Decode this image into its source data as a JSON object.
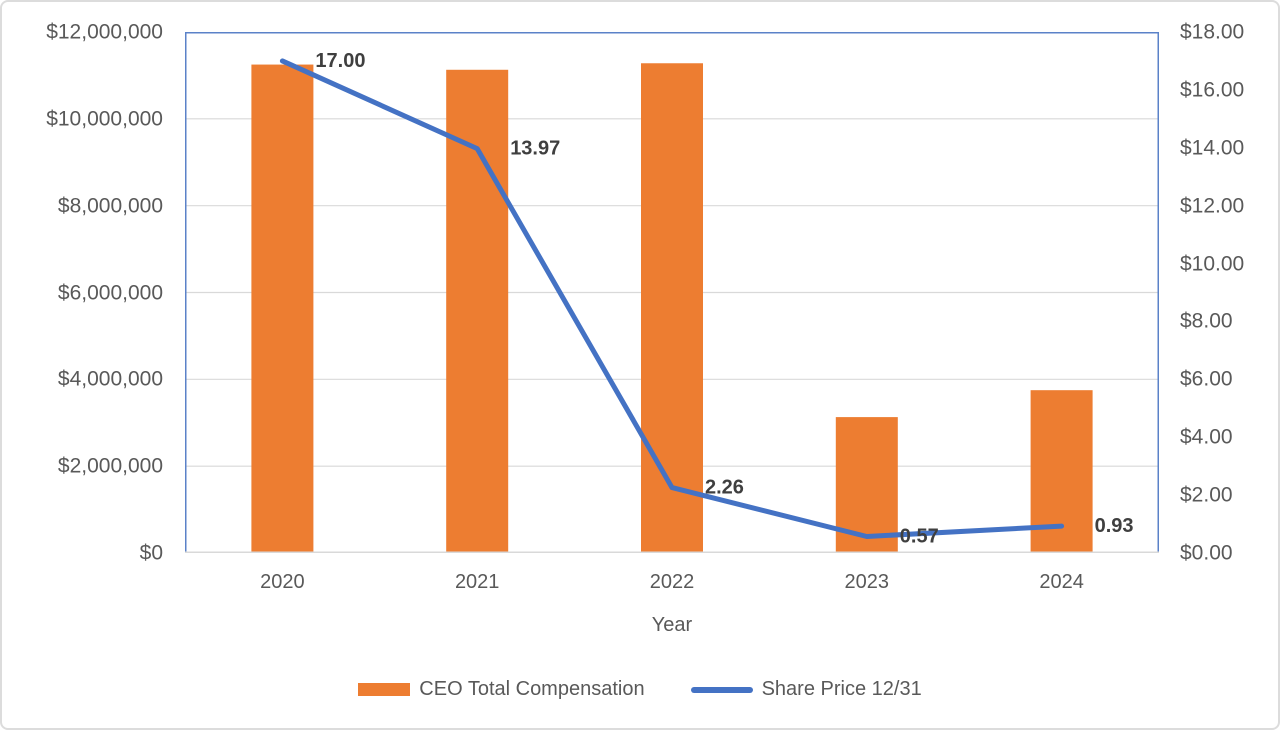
{
  "chart_data": {
    "type": "combo-bar-line",
    "title": "",
    "x_categories": [
      "2020",
      "2021",
      "2022",
      "2023",
      "2024"
    ],
    "xlabel": "Year",
    "series": [
      {
        "name": "CEO Total Compensation",
        "type": "bar",
        "axis": "left",
        "values": [
          11250000,
          11130000,
          11280000,
          3130000,
          3750000
        ]
      },
      {
        "name": "Share Price 12/31",
        "type": "line",
        "axis": "right",
        "values": [
          17.0,
          13.97,
          2.26,
          0.57,
          0.93
        ],
        "point_labels": [
          "17.00",
          "13.97",
          "2.26",
          "0.57",
          "0.93"
        ]
      }
    ],
    "left_axis": {
      "min": 0,
      "max": 12000000,
      "step": 2000000,
      "tick_labels_top_to_bottom": [
        "$12,000,000",
        "$10,000,000",
        "$8,000,000",
        "$6,000,000",
        "$4,000,000",
        "$2,000,000",
        "$0"
      ]
    },
    "right_axis": {
      "min": 0,
      "max": 18,
      "step": 2,
      "tick_labels_top_to_bottom": [
        "$18.00",
        "$16.00",
        "$14.00",
        "$12.00",
        "$10.00",
        "$8.00",
        "$6.00",
        "$4.00",
        "$2.00",
        "$0.00"
      ]
    },
    "grid": true,
    "legend_position": "bottom"
  },
  "legend": {
    "items": [
      {
        "label": "CEO Total Compensation",
        "swatch": "bar"
      },
      {
        "label": "Share Price 12/31",
        "swatch": "line"
      }
    ]
  },
  "colors": {
    "bar": "#ED7D31",
    "line": "#4472C4",
    "axis_text": "#595959",
    "data_label_text": "#3F3F3F",
    "gridline": "#D9D9D9",
    "plot_border": "#5B82C8",
    "bottom_axis_line": "#D9D9D9",
    "outer_border": "#DCDCDC"
  }
}
